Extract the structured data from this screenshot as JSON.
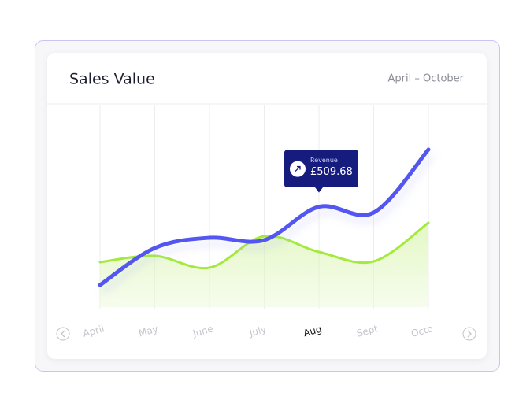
{
  "chart_data": {
    "type": "line",
    "title": "Sales Value",
    "subtitle": "April – October",
    "categories": [
      "April",
      "May",
      "June",
      "July",
      "Aug",
      "Sept",
      "Octo"
    ],
    "active_category_index": 4,
    "ylim": [
      0,
      1000
    ],
    "grid": true,
    "series": [
      {
        "name": "Revenue",
        "color": "#5257f0",
        "values": [
          112,
          300,
          352,
          340,
          509.68,
          480,
          800
        ],
        "value_labels": [
          null,
          null,
          null,
          null,
          "£509.68",
          null,
          null
        ]
      },
      {
        "color": "#a4ea3c",
        "values": [
          228,
          260,
          200,
          360,
          280,
          232,
          428
        ],
        "fill": true
      }
    ]
  }
}
